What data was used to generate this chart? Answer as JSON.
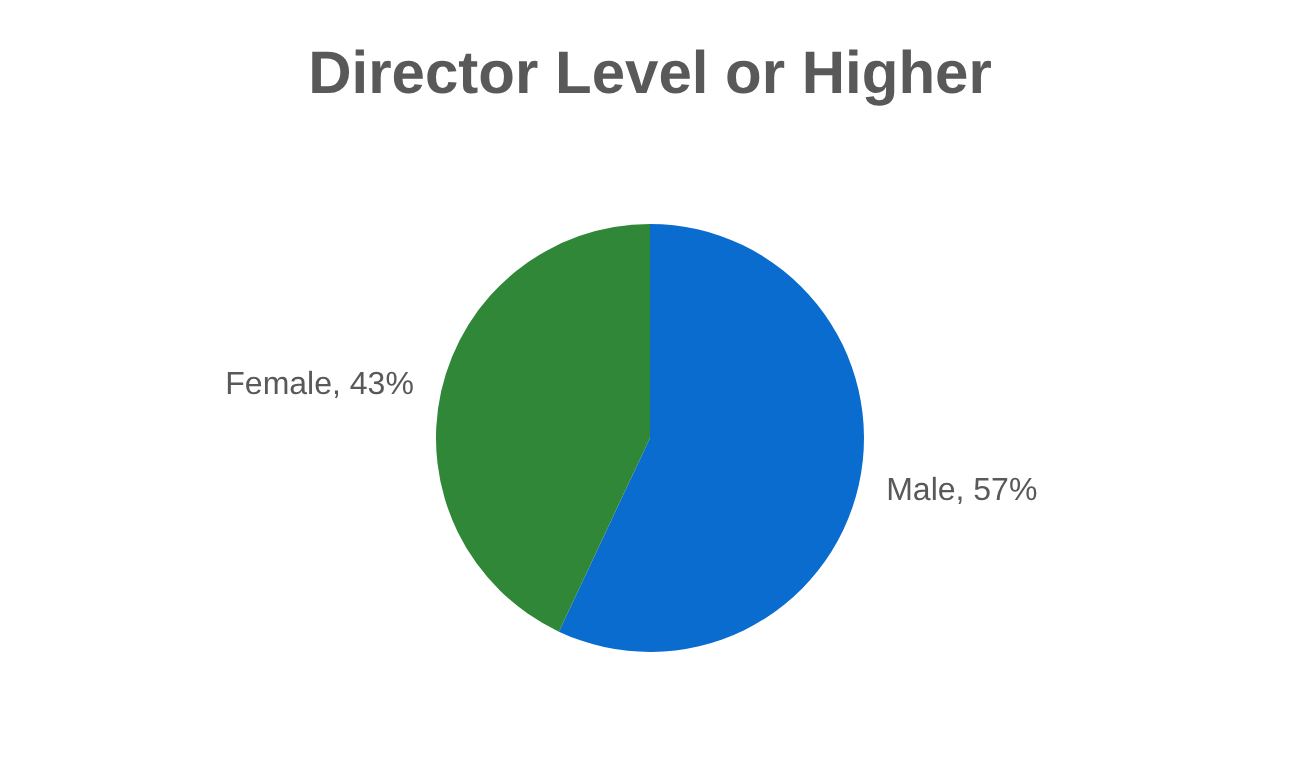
{
  "chart_data": {
    "type": "pie",
    "title": "Director Level or Higher",
    "categories": [
      "Male",
      "Female"
    ],
    "values": [
      57,
      43
    ],
    "colors": [
      "#0a6cce",
      "#2f8737"
    ],
    "value_labels": [
      "57%",
      "43%"
    ],
    "legend": false
  }
}
